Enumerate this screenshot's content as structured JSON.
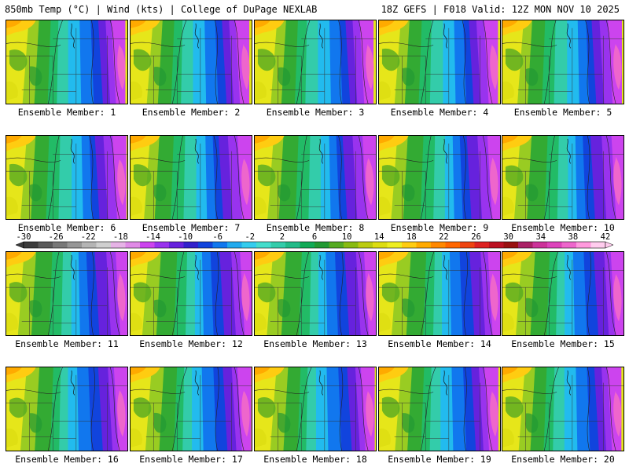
{
  "header": {
    "title_left": "850mb Temp (°C) | Wind (kts) | College of DuPage NEXLAB",
    "title_right": "18Z GEFS | F018 Valid: 12Z MON NOV 10 2025"
  },
  "member_prefix": "Ensemble Member: ",
  "members": [
    "Ensemble Member: 1",
    "Ensemble Member: 2",
    "Ensemble Member: 3",
    "Ensemble Member: 4",
    "Ensemble Member: 5",
    "Ensemble Member: 6",
    "Ensemble Member: 7",
    "Ensemble Member: 8",
    "Ensemble Member: 9",
    "Ensemble Member: 10",
    "Ensemble Member: 11",
    "Ensemble Member: 12",
    "Ensemble Member: 13",
    "Ensemble Member: 14",
    "Ensemble Member: 15",
    "Ensemble Member: 16",
    "Ensemble Member: 17",
    "Ensemble Member: 18",
    "Ensemble Member: 19",
    "Ensemble Member: 20"
  ],
  "colorbar": {
    "labels": [
      "-30",
      "-26",
      "-22",
      "-18",
      "-14",
      "-10",
      "-6",
      "-2",
      "2",
      "6",
      "10",
      "14",
      "18",
      "22",
      "26",
      "30",
      "34",
      "38",
      "42"
    ],
    "colors": [
      "#3c3c3c",
      "#5a5a5a",
      "#787878",
      "#969696",
      "#b4b4b4",
      "#cfcfcf",
      "#e6b3e6",
      "#e08ae6",
      "#cc44ee",
      "#9933ee",
      "#6622dd",
      "#3322cc",
      "#1144dd",
      "#1177ee",
      "#22aaee",
      "#33ccee",
      "#44ddcc",
      "#33ccaa",
      "#22bb88",
      "#11aa55",
      "#229933",
      "#55aa22",
      "#88bb11",
      "#bbcc11",
      "#dddd11",
      "#eeee22",
      "#ffcc11",
      "#ffaa00",
      "#ff8800",
      "#ff6600",
      "#ee4411",
      "#dd2222",
      "#bb1122",
      "#991111",
      "#aa2266",
      "#cc3399",
      "#dd44bb",
      "#ee66cc",
      "#ff99dd",
      "#ffccee"
    ]
  }
}
